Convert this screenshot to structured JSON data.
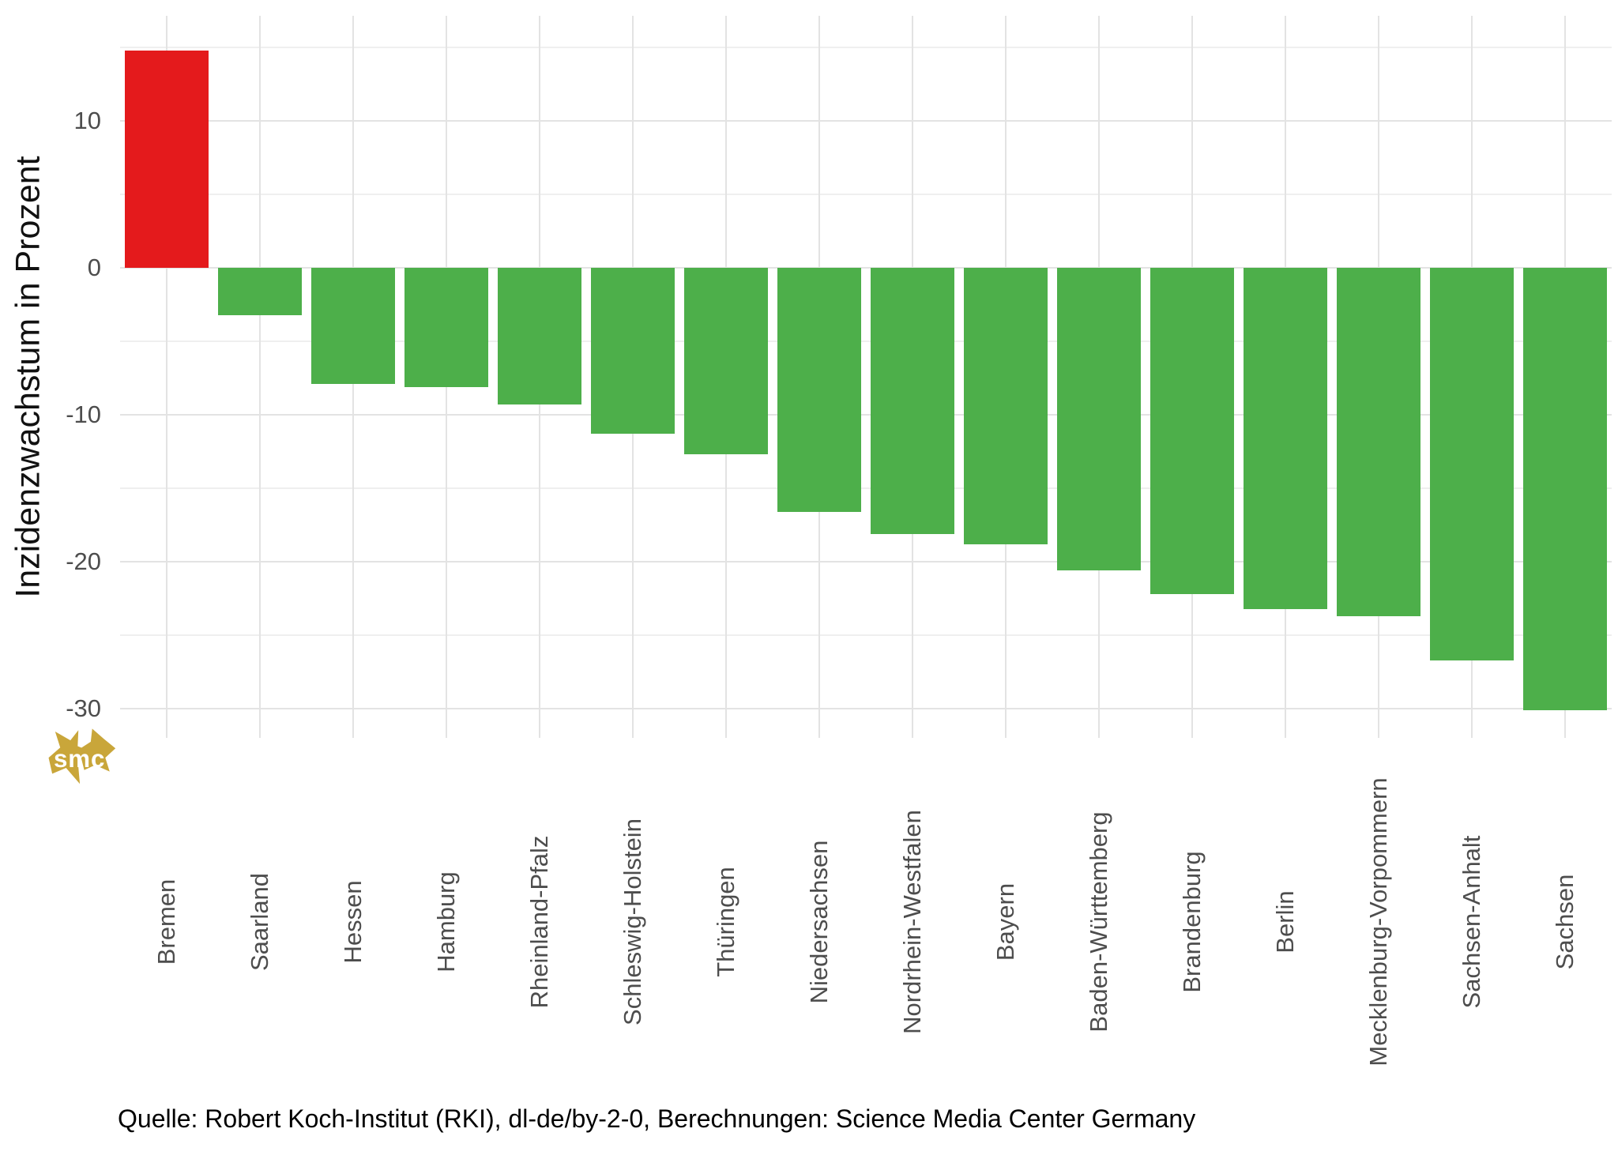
{
  "chart_data": {
    "type": "bar",
    "title": "",
    "xlabel": "",
    "ylabel": "Inzidenzwachstum in Prozent",
    "categories": [
      "Bremen",
      "Saarland",
      "Hessen",
      "Hamburg",
      "Rheinland-Pfalz",
      "Schleswig-Holstein",
      "Thüringen",
      "Niedersachsen",
      "Nordrhein-Westfalen",
      "Bayern",
      "Baden-Württemberg",
      "Brandenburg",
      "Berlin",
      "Mecklenburg-Vorpommern",
      "Sachsen-Anhalt",
      "Sachsen"
    ],
    "values": [
      14.8,
      -3.2,
      -7.9,
      -8.1,
      -9.3,
      -11.3,
      -12.7,
      -16.6,
      -18.1,
      -18.8,
      -20.6,
      -22.2,
      -23.2,
      -23.7,
      -26.7,
      -30.1
    ],
    "ylim": [
      -32.1,
      17.2
    ],
    "yticks_major": [
      10,
      0,
      -10,
      -20,
      -30
    ],
    "ytick_labels": [
      "10",
      "0",
      "-10",
      "-20",
      "-30"
    ],
    "yticks_minor": [
      15,
      5,
      -5,
      -15,
      -25
    ],
    "grid": "on",
    "legend": "none",
    "colors": {
      "bar_positive": "#e41a1c",
      "bar_negative": "#4daf4a",
      "grid_major": "#e3e3e3",
      "grid_minor": "#efefef",
      "tick_text": "#4d4d4d",
      "axis_title": "#111111",
      "caption_text": "#000000"
    }
  },
  "caption": "Quelle: Robert Koch-Institut (RKI), dl-de/by-2-0, Berechnungen: Science Media Center Germany",
  "logo": {
    "text": "smc",
    "color": "#c9a63a"
  }
}
